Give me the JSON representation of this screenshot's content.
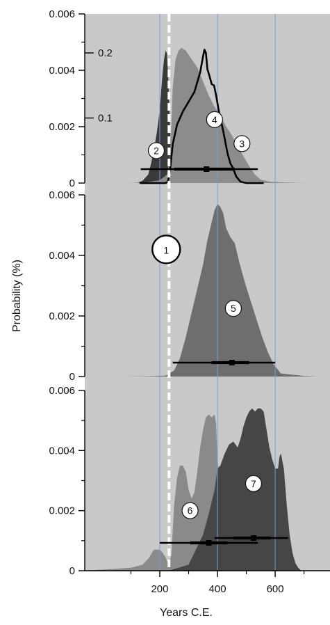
{
  "chart_data": {
    "type": "area",
    "xlabel": "Years C.E.",
    "ylabel": "Probability (%)",
    "xlim": [
      -60,
      790
    ],
    "x_ticks": [
      200,
      400,
      600
    ],
    "x_minor_ticks": [
      100,
      300,
      500,
      700
    ],
    "y_ticks": [
      {
        "value": 0,
        "label": "0"
      },
      {
        "value": 0.002,
        "label": "0.002"
      },
      {
        "value": 0.004,
        "label": "0.004"
      },
      {
        "value": 0.006,
        "label": "0.006"
      }
    ],
    "ylim": [
      0,
      0.006
    ],
    "grid": {
      "vertical_lines_at": [
        200,
        400,
        600
      ],
      "color": "#7b9be0"
    },
    "background": "#c9c9c9",
    "reference_line": {
      "x": 232,
      "label": "1",
      "style": "white dashed"
    },
    "panels": [
      {
        "secondary_axis": {
          "ticks": [
            {
              "value": 0.1,
              "label": "0.1"
            },
            {
              "value": 0.2,
              "label": "0.2"
            }
          ],
          "max": 0.26
        },
        "series": [
          {
            "label": "2",
            "kind": "filled",
            "color": "#3a3a3a",
            "axis": "primary",
            "points": [
              [
                120,
                0
              ],
              [
                140,
                8e-05
              ],
              [
                160,
                0.0003
              ],
              [
                170,
                0.0007
              ],
              [
                180,
                0.0012
              ],
              [
                190,
                0.0018
              ],
              [
                200,
                0.0026
              ],
              [
                205,
                0.0033
              ],
              [
                210,
                0.0039
              ],
              [
                215,
                0.0044
              ],
              [
                220,
                0.0047
              ],
              [
                225,
                0.0046
              ],
              [
                230,
                0.0036
              ],
              [
                235,
                0.0022
              ],
              [
                240,
                0.0008
              ],
              [
                250,
                0.0002
              ],
              [
                260,
                0
              ]
            ],
            "label_at": [
              188,
              0.00115
            ]
          },
          {
            "label": "3",
            "kind": "filled",
            "color": "#8c8c8c",
            "axis": "primary",
            "points": [
              [
                100,
                0
              ],
              [
                160,
                4e-05
              ],
              [
                200,
                0.0001
              ],
              [
                225,
                0.0003
              ],
              [
                235,
                0.0009
              ],
              [
                240,
                0.002
              ],
              [
                245,
                0.0034
              ],
              [
                255,
                0.0044
              ],
              [
                265,
                0.0047
              ],
              [
                275,
                0.0048
              ],
              [
                290,
                0.0047
              ],
              [
                310,
                0.0044
              ],
              [
                330,
                0.0041
              ],
              [
                350,
                0.0036
              ],
              [
                370,
                0.0031
              ],
              [
                390,
                0.0027
              ],
              [
                410,
                0.0024
              ],
              [
                430,
                0.002
              ],
              [
                450,
                0.0017
              ],
              [
                470,
                0.0013
              ],
              [
                490,
                0.00095
              ],
              [
                510,
                0.0006
              ],
              [
                530,
                0.0003
              ],
              [
                550,
                0.00012
              ],
              [
                580,
                5e-05
              ],
              [
                640,
                2e-05
              ],
              [
                700,
                0
              ]
            ],
            "label_at": [
              485,
              0.0014
            ]
          },
          {
            "label": "4",
            "kind": "line",
            "color": "#000000",
            "axis": "secondary",
            "points": [
              [
                130,
                0
              ],
              [
                220,
                0
              ],
              [
                228,
                0.002
              ],
              [
                235,
                0.018
              ],
              [
                245,
                0.06
              ],
              [
                260,
                0.09
              ],
              [
                280,
                0.11
              ],
              [
                300,
                0.125
              ],
              [
                320,
                0.14
              ],
              [
                340,
                0.17
              ],
              [
                350,
                0.195
              ],
              [
                355,
                0.205
              ],
              [
                360,
                0.2
              ],
              [
                365,
                0.175
              ],
              [
                372,
                0.165
              ],
              [
                380,
                0.152
              ],
              [
                388,
                0.15
              ],
              [
                395,
                0.135
              ],
              [
                405,
                0.11
              ],
              [
                420,
                0.08
              ],
              [
                435,
                0.045
              ],
              [
                445,
                0.03
              ],
              [
                455,
                0.022
              ],
              [
                465,
                0.01
              ],
              [
                480,
                0.002
              ],
              [
                500,
                0
              ],
              [
                560,
                0
              ]
            ],
            "label_at": [
              390,
              0.00225
            ]
          }
        ],
        "intervals": [
          {
            "label": "2",
            "range": [
              134,
              254
            ],
            "inner": [
              null,
              null
            ],
            "mid": null
          },
          {
            "label": "3",
            "range": [
              230,
              540
            ],
            "inner": [
              250,
              460
            ],
            "mid": 362
          }
        ]
      },
      {
        "series": [
          {
            "label": "5",
            "kind": "filled",
            "color": "#6e6e6e",
            "axis": "primary",
            "points": [
              [
                70,
                0
              ],
              [
                150,
                1e-05
              ],
              [
                220,
                3e-05
              ],
              [
                250,
                0.0002
              ],
              [
                270,
                0.0006
              ],
              [
                290,
                0.0013
              ],
              [
                310,
                0.0021
              ],
              [
                330,
                0.0029
              ],
              [
                350,
                0.0037
              ],
              [
                365,
                0.0045
              ],
              [
                380,
                0.0051
              ],
              [
                390,
                0.0055
              ],
              [
                400,
                0.0057
              ],
              [
                410,
                0.0056
              ],
              [
                420,
                0.0054
              ],
              [
                430,
                0.0049
              ],
              [
                445,
                0.0046
              ],
              [
                460,
                0.0044
              ],
              [
                475,
                0.0038
              ],
              [
                495,
                0.0031
              ],
              [
                515,
                0.0025
              ],
              [
                535,
                0.0019
              ],
              [
                555,
                0.0013
              ],
              [
                575,
                0.0008
              ],
              [
                595,
                0.0004
              ],
              [
                620,
                0.0001
              ],
              [
                700,
                2e-05
              ],
              [
                750,
                0
              ]
            ],
            "label_at": [
              455,
              0.00225
            ]
          }
        ],
        "intervals": [
          {
            "label": "5",
            "range": [
              245,
              600
            ],
            "inner": [
              380,
              510
            ],
            "mid": 450
          }
        ]
      },
      {
        "series": [
          {
            "label": "6",
            "kind": "filled",
            "color": "#8a8a8a",
            "axis": "primary",
            "points": [
              [
                -60,
                0
              ],
              [
                100,
                0.0001
              ],
              [
                140,
                0.0002
              ],
              [
                160,
                0.0004
              ],
              [
                180,
                0.0007
              ],
              [
                200,
                0.0007
              ],
              [
                210,
                0.0006
              ],
              [
                220,
                0.00045
              ],
              [
                230,
                0.0002
              ],
              [
                240,
                0.0005
              ],
              [
                250,
                0.0022
              ],
              [
                260,
                0.0031
              ],
              [
                270,
                0.0035
              ],
              [
                280,
                0.0035
              ],
              [
                290,
                0.0033
              ],
              [
                300,
                0.0027
              ],
              [
                310,
                0.0024
              ],
              [
                320,
                0.0026
              ],
              [
                330,
                0.0033
              ],
              [
                340,
                0.0041
              ],
              [
                350,
                0.0047
              ],
              [
                360,
                0.0051
              ],
              [
                370,
                0.0052
              ],
              [
                380,
                0.0051
              ],
              [
                390,
                0.0052
              ],
              [
                395,
                0.0049
              ],
              [
                400,
                0.0037
              ],
              [
                410,
                0.0029
              ],
              [
                420,
                0.0024
              ],
              [
                435,
                0.0022
              ],
              [
                455,
                0.0019
              ],
              [
                475,
                0.0015
              ],
              [
                490,
                0.001
              ],
              [
                505,
                0.0006
              ],
              [
                520,
                0.0003
              ],
              [
                540,
                0.0001
              ],
              [
                560,
                0
              ]
            ],
            "label_at": [
              305,
              0.002
            ]
          },
          {
            "label": "7",
            "kind": "filled",
            "color": "#464646",
            "axis": "primary",
            "points": [
              [
                230,
                0
              ],
              [
                300,
                0.0002
              ],
              [
                330,
                0.0008
              ],
              [
                350,
                0.0012
              ],
              [
                370,
                0.0019
              ],
              [
                390,
                0.0027
              ],
              [
                400,
                0.0034
              ],
              [
                410,
                0.0035
              ],
              [
                425,
                0.0039
              ],
              [
                440,
                0.0042
              ],
              [
                455,
                0.0043
              ],
              [
                470,
                0.0041
              ],
              [
                480,
                0.0044
              ],
              [
                490,
                0.0048
              ],
              [
                500,
                0.0051
              ],
              [
                510,
                0.0053
              ],
              [
                520,
                0.0054
              ],
              [
                530,
                0.0053
              ],
              [
                540,
                0.0054
              ],
              [
                550,
                0.0054
              ],
              [
                560,
                0.0053
              ],
              [
                570,
                0.0047
              ],
              [
                580,
                0.0041
              ],
              [
                590,
                0.0037
              ],
              [
                600,
                0.0034
              ],
              [
                610,
                0.0034
              ],
              [
                615,
                0.0038
              ],
              [
                620,
                0.0039
              ],
              [
                630,
                0.0034
              ],
              [
                640,
                0.0022
              ],
              [
                650,
                0.0012
              ],
              [
                660,
                0.0006
              ],
              [
                670,
                0.00025
              ],
              [
                680,
                0.0001
              ],
              [
                690,
                0
              ]
            ],
            "label_at": [
              525,
              0.0029
            ]
          }
        ],
        "intervals": [
          {
            "label": "6",
            "range": [
              200,
              540
            ],
            "inner": [
              305,
              435
            ],
            "mid": 370
          },
          {
            "label": "7",
            "range": [
              390,
              645
            ],
            "inner": [
              455,
              585
            ],
            "mid": 525
          }
        ]
      }
    ]
  }
}
